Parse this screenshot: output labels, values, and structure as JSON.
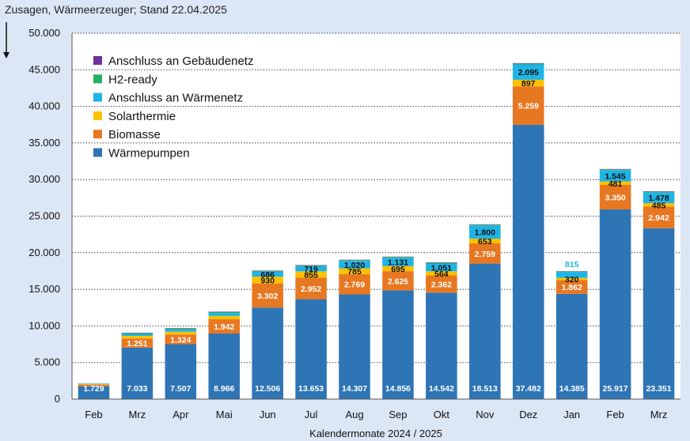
{
  "chart_data": {
    "type": "bar",
    "stacked": true,
    "title": "Zusagen, Wärmeerzeuger; Stand 22.04.2025",
    "xlabel": "Kalendermonate 2024 / 2025",
    "ylabel": "",
    "ylim": [
      0,
      50000
    ],
    "yticks": [
      "0",
      "5.000",
      "10.000",
      "15.000",
      "20.000",
      "25.000",
      "30.000",
      "35.000",
      "40.000",
      "45.000",
      "50.000"
    ],
    "grid": true,
    "legend_position": "top-left",
    "categories": [
      "Feb",
      "Mrz",
      "Apr",
      "Mai",
      "Jun",
      "Jul",
      "Aug",
      "Sep",
      "Okt",
      "Nov",
      "Dez",
      "Jan",
      "Feb",
      "Mrz"
    ],
    "series": [
      {
        "name": "Wärmepumpen",
        "color": "#2e75b6",
        "values": [
          1729,
          7033,
          7507,
          8966,
          12506,
          13653,
          14307,
          14856,
          14542,
          18513,
          37482,
          14385,
          25917,
          23351
        ],
        "labels": [
          "1.729",
          "7.033",
          "7.507",
          "8.966",
          "12.506",
          "13.653",
          "14.307",
          "14.856",
          "14.542",
          "18.513",
          "37.482",
          "14.385",
          "25.917",
          "23.351"
        ]
      },
      {
        "name": "Biomasse",
        "color": "#e87722",
        "values": [
          250,
          1251,
          1324,
          1942,
          3302,
          2952,
          2769,
          2625,
          2362,
          2759,
          5259,
          1862,
          3350,
          2942
        ],
        "labels": [
          "",
          "1.251",
          "1.324",
          "1.942",
          "3.302",
          "2.952",
          "2.769",
          "2.625",
          "2.362",
          "2.759",
          "5.259",
          "1.862",
          "3.350",
          "2.942"
        ]
      },
      {
        "name": "Solarthermie",
        "color": "#ffc000",
        "values": [
          60,
          350,
          380,
          450,
          930,
          855,
          785,
          695,
          564,
          653,
          897,
          320,
          481,
          485
        ],
        "labels": [
          "",
          "",
          "",
          "",
          "930",
          "855",
          "785",
          "695",
          "564",
          "653",
          "897",
          "320",
          "481",
          "485"
        ]
      },
      {
        "name": "Anschluss an Wärmenetz",
        "color": "#1fb4e6",
        "values": [
          60,
          280,
          330,
          400,
          686,
          719,
          1020,
          1131,
          1051,
          1800,
          2095,
          815,
          1545,
          1478
        ],
        "labels": [
          "",
          "",
          "",
          "",
          "686",
          "719",
          "1.020",
          "1.131",
          "1.051",
          "1.800",
          "2.095",
          "815",
          "1.545",
          "1.478"
        ]
      },
      {
        "name": "H2-ready",
        "color": "#27ae60",
        "values": [
          20,
          120,
          120,
          150,
          100,
          100,
          110,
          110,
          110,
          110,
          120,
          60,
          100,
          100
        ],
        "labels": [
          "",
          "",
          "",
          "",
          "",
          "",
          "",
          "",
          "",
          "",
          "",
          "",
          "",
          ""
        ]
      },
      {
        "name": "Anschluss an Gebäudenetz",
        "color": "#7030a0",
        "values": [
          10,
          40,
          40,
          50,
          50,
          50,
          50,
          50,
          50,
          50,
          60,
          30,
          50,
          50
        ],
        "labels": [
          "",
          "",
          "",
          "",
          "",
          "",
          "",
          "",
          "",
          "",
          "",
          "",
          "",
          ""
        ]
      }
    ]
  }
}
